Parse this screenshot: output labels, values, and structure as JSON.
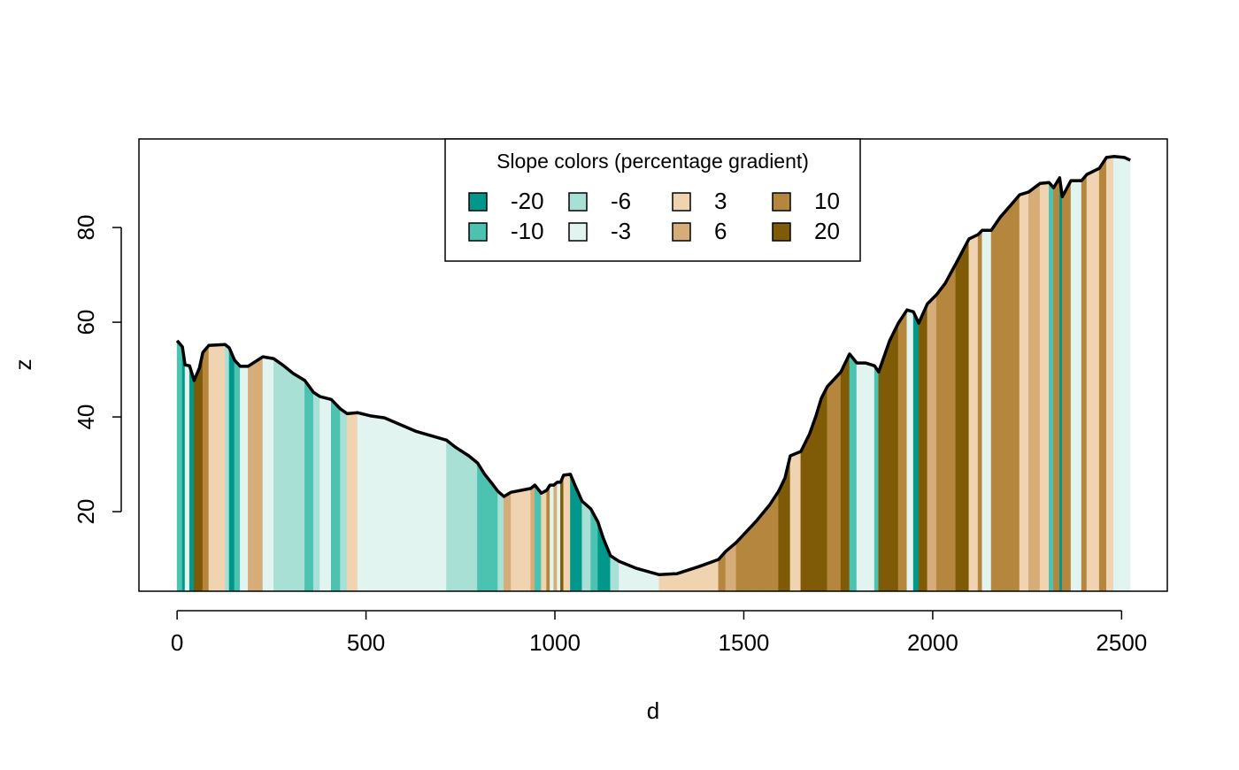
{
  "chart_data": {
    "type": "area",
    "xlabel": "d",
    "ylabel": "z",
    "d": [
      0,
      14,
      21,
      33,
      45,
      59,
      68,
      84,
      127,
      138,
      152,
      167,
      188,
      227,
      256,
      284,
      307,
      338,
      361,
      378,
      408,
      432,
      450,
      478,
      514,
      549,
      631,
      713,
      737,
      772,
      795,
      814,
      833,
      849,
      865,
      884,
      936,
      947,
      964,
      978,
      987,
      997,
      1006,
      1015,
      1023,
      1041,
      1053,
      1072,
      1095,
      1114,
      1128,
      1147,
      1170,
      1217,
      1276,
      1323,
      1381,
      1433,
      1452,
      1480,
      1534,
      1569,
      1592,
      1609,
      1623,
      1651,
      1674,
      1691,
      1705,
      1721,
      1757,
      1780,
      1799,
      1822,
      1846,
      1857,
      1886,
      1909,
      1932,
      1949,
      1963,
      1986,
      2010,
      2033,
      2061,
      2096,
      2120,
      2131,
      2155,
      2179,
      2214,
      2230,
      2254,
      2284,
      2308,
      2320,
      2336,
      2343,
      2366,
      2394,
      2408,
      2441,
      2460,
      2479,
      2507,
      2523
    ],
    "z": [
      56.1,
      54.8,
      51,
      50.8,
      47.7,
      50.3,
      53.6,
      55.1,
      55.3,
      54.6,
      52,
      50.7,
      50.7,
      52.7,
      52.3,
      50.7,
      49.2,
      47.7,
      45.2,
      44.3,
      43.7,
      41.7,
      40.7,
      40.9,
      40.2,
      39.8,
      37,
      35.1,
      33.6,
      31.8,
      30.3,
      27.9,
      26,
      24.3,
      23.2,
      24.1,
      24.9,
      25.6,
      23.9,
      24.5,
      25.6,
      25.6,
      26.2,
      26.2,
      27.7,
      27.9,
      25.6,
      22.2,
      20.6,
      17.8,
      14.4,
      10.7,
      9.5,
      8,
      6.7,
      6.9,
      8.4,
      9.9,
      11.6,
      13.5,
      18.1,
      21.5,
      24.3,
      27.1,
      31.8,
      32.7,
      36.4,
      40.2,
      43.9,
      46.4,
      49.5,
      53.3,
      51.4,
      51.4,
      50.8,
      49.5,
      56.1,
      59.8,
      62.6,
      62.2,
      59.8,
      63.9,
      65.8,
      68.2,
      72.3,
      77.6,
      78.5,
      79.4,
      79.4,
      82.2,
      85.4,
      86.9,
      87.5,
      89.3,
      89.5,
      88.4,
      90.5,
      86.5,
      89.9,
      89.9,
      91.2,
      92.5,
      94.8,
      95,
      94.8,
      94.2
    ],
    "xlim": [
      -101,
      2621
    ],
    "ylim": [
      3.2,
      98.7
    ],
    "xticks": [
      0,
      500,
      1000,
      1500,
      2000,
      2500
    ],
    "yticks": [
      20,
      40,
      60,
      80
    ],
    "line_color": "#000000",
    "legend": {
      "title": "Slope colors (percentage gradient)",
      "position": "top",
      "labels": [
        -20,
        -10,
        -6,
        -3,
        3,
        6,
        10,
        20
      ],
      "colors": [
        "#01978a",
        "#4cc2b0",
        "#a9e0d6",
        "#e2f4f0",
        "#f0d4b1",
        "#d6ac78",
        "#b5873e",
        "#7f5a07"
      ]
    }
  }
}
